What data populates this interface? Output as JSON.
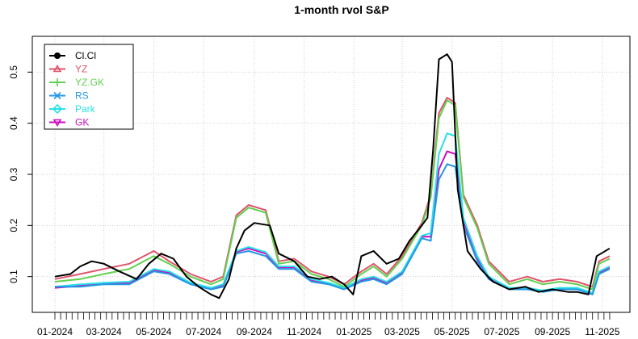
{
  "chart_data": {
    "type": "line",
    "title": "1-month rvol S&P",
    "xlabel": "",
    "ylabel": "",
    "ylim": [
      0.03,
      0.57
    ],
    "y_ticks": [
      0.1,
      0.2,
      0.3,
      0.4,
      0.5
    ],
    "x_ticks": [
      "01-2024",
      "03-2024",
      "05-2024",
      "07-2024",
      "09-2024",
      "11-2024",
      "01-2025",
      "03-2025",
      "05-2025",
      "07-2025",
      "09-2025",
      "11-2025"
    ],
    "x_start": "2024-01-01",
    "x_end": "2025-11-15",
    "grid": true,
    "legend_position": "top-left",
    "series": [
      {
        "name": "Cl.Cl",
        "color": "#000000",
        "marker": "circle",
        "values": [
          [
            "2024-01-01",
            0.1
          ],
          [
            "2024-01-20",
            0.105
          ],
          [
            "2024-02-01",
            0.12
          ],
          [
            "2024-02-15",
            0.13
          ],
          [
            "2024-03-01",
            0.125
          ],
          [
            "2024-03-20",
            0.11
          ],
          [
            "2024-04-10",
            0.095
          ],
          [
            "2024-04-25",
            0.125
          ],
          [
            "2024-05-10",
            0.145
          ],
          [
            "2024-05-25",
            0.135
          ],
          [
            "2024-06-10",
            0.1
          ],
          [
            "2024-06-25",
            0.08
          ],
          [
            "2024-07-10",
            0.065
          ],
          [
            "2024-07-20",
            0.058
          ],
          [
            "2024-08-01",
            0.095
          ],
          [
            "2024-08-10",
            0.155
          ],
          [
            "2024-08-20",
            0.19
          ],
          [
            "2024-09-01",
            0.205
          ],
          [
            "2024-09-20",
            0.2
          ],
          [
            "2024-10-01",
            0.145
          ],
          [
            "2024-10-20",
            0.13
          ],
          [
            "2024-11-05",
            0.1
          ],
          [
            "2024-11-20",
            0.095
          ],
          [
            "2024-12-05",
            0.1
          ],
          [
            "2024-12-20",
            0.085
          ],
          [
            "2024-12-31",
            0.065
          ],
          [
            "2025-01-10",
            0.14
          ],
          [
            "2025-01-25",
            0.15
          ],
          [
            "2025-02-10",
            0.125
          ],
          [
            "2025-02-25",
            0.135
          ],
          [
            "2025-03-10",
            0.17
          ],
          [
            "2025-03-25",
            0.2
          ],
          [
            "2025-04-01",
            0.215
          ],
          [
            "2025-04-08",
            0.35
          ],
          [
            "2025-04-15",
            0.525
          ],
          [
            "2025-04-25",
            0.535
          ],
          [
            "2025-05-01",
            0.52
          ],
          [
            "2025-05-08",
            0.27
          ],
          [
            "2025-05-20",
            0.15
          ],
          [
            "2025-06-05",
            0.115
          ],
          [
            "2025-06-20",
            0.09
          ],
          [
            "2025-07-10",
            0.075
          ],
          [
            "2025-07-30",
            0.08
          ],
          [
            "2025-08-15",
            0.07
          ],
          [
            "2025-09-01",
            0.075
          ],
          [
            "2025-09-20",
            0.07
          ],
          [
            "2025-10-01",
            0.07
          ],
          [
            "2025-10-15",
            0.065
          ],
          [
            "2025-10-25",
            0.14
          ],
          [
            "2025-11-10",
            0.155
          ]
        ]
      },
      {
        "name": "YZ",
        "color": "#DF536B",
        "marker": "triangle",
        "values": [
          [
            "2024-01-01",
            0.095
          ],
          [
            "2024-02-01",
            0.105
          ],
          [
            "2024-03-01",
            0.115
          ],
          [
            "2024-04-01",
            0.125
          ],
          [
            "2024-05-01",
            0.15
          ],
          [
            "2024-05-20",
            0.13
          ],
          [
            "2024-06-15",
            0.105
          ],
          [
            "2024-07-10",
            0.09
          ],
          [
            "2024-07-25",
            0.1
          ],
          [
            "2024-08-10",
            0.22
          ],
          [
            "2024-08-25",
            0.24
          ],
          [
            "2024-09-15",
            0.23
          ],
          [
            "2024-10-01",
            0.13
          ],
          [
            "2024-10-20",
            0.135
          ],
          [
            "2024-11-10",
            0.11
          ],
          [
            "2024-12-01",
            0.1
          ],
          [
            "2024-12-20",
            0.085
          ],
          [
            "2025-01-10",
            0.11
          ],
          [
            "2025-01-25",
            0.125
          ],
          [
            "2025-02-10",
            0.105
          ],
          [
            "2025-03-01",
            0.14
          ],
          [
            "2025-03-25",
            0.205
          ],
          [
            "2025-04-05",
            0.26
          ],
          [
            "2025-04-15",
            0.42
          ],
          [
            "2025-04-25",
            0.45
          ],
          [
            "2025-05-05",
            0.44
          ],
          [
            "2025-05-15",
            0.26
          ],
          [
            "2025-06-01",
            0.2
          ],
          [
            "2025-06-15",
            0.13
          ],
          [
            "2025-07-10",
            0.09
          ],
          [
            "2025-08-01",
            0.1
          ],
          [
            "2025-08-20",
            0.09
          ],
          [
            "2025-09-10",
            0.095
          ],
          [
            "2025-10-01",
            0.09
          ],
          [
            "2025-10-20",
            0.08
          ],
          [
            "2025-10-28",
            0.13
          ],
          [
            "2025-11-10",
            0.14
          ]
        ]
      },
      {
        "name": "YZ.GK",
        "color": "#61D04F",
        "marker": "plus",
        "values": [
          [
            "2024-01-01",
            0.09
          ],
          [
            "2024-02-01",
            0.095
          ],
          [
            "2024-03-01",
            0.105
          ],
          [
            "2024-04-01",
            0.115
          ],
          [
            "2024-05-01",
            0.14
          ],
          [
            "2024-05-20",
            0.125
          ],
          [
            "2024-06-15",
            0.1
          ],
          [
            "2024-07-10",
            0.085
          ],
          [
            "2024-07-25",
            0.095
          ],
          [
            "2024-08-10",
            0.215
          ],
          [
            "2024-08-25",
            0.235
          ],
          [
            "2024-09-15",
            0.225
          ],
          [
            "2024-10-01",
            0.125
          ],
          [
            "2024-10-20",
            0.13
          ],
          [
            "2024-11-10",
            0.105
          ],
          [
            "2024-12-01",
            0.095
          ],
          [
            "2024-12-20",
            0.08
          ],
          [
            "2025-01-10",
            0.105
          ],
          [
            "2025-01-25",
            0.12
          ],
          [
            "2025-02-10",
            0.1
          ],
          [
            "2025-03-01",
            0.135
          ],
          [
            "2025-03-25",
            0.2
          ],
          [
            "2025-04-05",
            0.255
          ],
          [
            "2025-04-15",
            0.41
          ],
          [
            "2025-04-25",
            0.445
          ],
          [
            "2025-05-05",
            0.435
          ],
          [
            "2025-05-15",
            0.255
          ],
          [
            "2025-06-01",
            0.195
          ],
          [
            "2025-06-15",
            0.125
          ],
          [
            "2025-07-10",
            0.085
          ],
          [
            "2025-08-01",
            0.095
          ],
          [
            "2025-08-20",
            0.085
          ],
          [
            "2025-09-10",
            0.09
          ],
          [
            "2025-10-01",
            0.085
          ],
          [
            "2025-10-20",
            0.075
          ],
          [
            "2025-10-28",
            0.125
          ],
          [
            "2025-11-10",
            0.135
          ]
        ]
      },
      {
        "name": "RS",
        "color": "#2297E6",
        "marker": "cross",
        "values": [
          [
            "2024-01-01",
            0.08
          ],
          [
            "2024-02-01",
            0.08
          ],
          [
            "2024-03-01",
            0.085
          ],
          [
            "2024-04-01",
            0.085
          ],
          [
            "2024-05-01",
            0.11
          ],
          [
            "2024-05-20",
            0.105
          ],
          [
            "2024-06-15",
            0.085
          ],
          [
            "2024-07-10",
            0.075
          ],
          [
            "2024-07-25",
            0.08
          ],
          [
            "2024-08-10",
            0.145
          ],
          [
            "2024-08-25",
            0.15
          ],
          [
            "2024-09-15",
            0.14
          ],
          [
            "2024-10-01",
            0.115
          ],
          [
            "2024-10-20",
            0.115
          ],
          [
            "2024-11-10",
            0.09
          ],
          [
            "2024-12-01",
            0.085
          ],
          [
            "2024-12-20",
            0.075
          ],
          [
            "2025-01-10",
            0.09
          ],
          [
            "2025-01-25",
            0.095
          ],
          [
            "2025-02-10",
            0.085
          ],
          [
            "2025-03-01",
            0.105
          ],
          [
            "2025-03-25",
            0.175
          ],
          [
            "2025-04-05",
            0.17
          ],
          [
            "2025-04-15",
            0.29
          ],
          [
            "2025-04-25",
            0.32
          ],
          [
            "2025-05-05",
            0.315
          ],
          [
            "2025-05-15",
            0.2
          ],
          [
            "2025-06-01",
            0.13
          ],
          [
            "2025-06-15",
            0.095
          ],
          [
            "2025-07-10",
            0.075
          ],
          [
            "2025-08-01",
            0.075
          ],
          [
            "2025-08-20",
            0.07
          ],
          [
            "2025-09-10",
            0.075
          ],
          [
            "2025-10-01",
            0.075
          ],
          [
            "2025-10-20",
            0.065
          ],
          [
            "2025-10-28",
            0.105
          ],
          [
            "2025-11-10",
            0.115
          ]
        ]
      },
      {
        "name": "Park",
        "color": "#28E2E5",
        "marker": "diamond",
        "values": [
          [
            "2024-01-01",
            0.08
          ],
          [
            "2024-02-01",
            0.085
          ],
          [
            "2024-03-01",
            0.088
          ],
          [
            "2024-04-01",
            0.09
          ],
          [
            "2024-05-01",
            0.115
          ],
          [
            "2024-05-20",
            0.11
          ],
          [
            "2024-06-15",
            0.088
          ],
          [
            "2024-07-10",
            0.078
          ],
          [
            "2024-07-25",
            0.085
          ],
          [
            "2024-08-10",
            0.15
          ],
          [
            "2024-08-25",
            0.158
          ],
          [
            "2024-09-15",
            0.148
          ],
          [
            "2024-10-01",
            0.12
          ],
          [
            "2024-10-20",
            0.12
          ],
          [
            "2024-11-10",
            0.095
          ],
          [
            "2024-12-01",
            0.088
          ],
          [
            "2024-12-20",
            0.078
          ],
          [
            "2025-01-10",
            0.095
          ],
          [
            "2025-01-25",
            0.1
          ],
          [
            "2025-02-10",
            0.09
          ],
          [
            "2025-03-01",
            0.11
          ],
          [
            "2025-03-25",
            0.18
          ],
          [
            "2025-04-05",
            0.185
          ],
          [
            "2025-04-15",
            0.34
          ],
          [
            "2025-04-25",
            0.38
          ],
          [
            "2025-05-05",
            0.375
          ],
          [
            "2025-05-15",
            0.215
          ],
          [
            "2025-06-01",
            0.14
          ],
          [
            "2025-06-15",
            0.1
          ],
          [
            "2025-07-10",
            0.078
          ],
          [
            "2025-08-01",
            0.078
          ],
          [
            "2025-08-20",
            0.073
          ],
          [
            "2025-09-10",
            0.078
          ],
          [
            "2025-10-01",
            0.078
          ],
          [
            "2025-10-20",
            0.068
          ],
          [
            "2025-10-28",
            0.11
          ],
          [
            "2025-11-10",
            0.12
          ]
        ]
      },
      {
        "name": "GK",
        "color": "#CD0BBC",
        "marker": "triangle-down",
        "values": [
          [
            "2024-01-01",
            0.078
          ],
          [
            "2024-02-01",
            0.082
          ],
          [
            "2024-03-01",
            0.086
          ],
          [
            "2024-04-01",
            0.088
          ],
          [
            "2024-05-01",
            0.112
          ],
          [
            "2024-05-20",
            0.108
          ],
          [
            "2024-06-15",
            0.087
          ],
          [
            "2024-07-10",
            0.076
          ],
          [
            "2024-07-25",
            0.083
          ],
          [
            "2024-08-10",
            0.148
          ],
          [
            "2024-08-25",
            0.155
          ],
          [
            "2024-09-15",
            0.145
          ],
          [
            "2024-10-01",
            0.118
          ],
          [
            "2024-10-20",
            0.118
          ],
          [
            "2024-11-10",
            0.093
          ],
          [
            "2024-12-01",
            0.087
          ],
          [
            "2024-12-20",
            0.077
          ],
          [
            "2025-01-10",
            0.093
          ],
          [
            "2025-01-25",
            0.098
          ],
          [
            "2025-02-10",
            0.088
          ],
          [
            "2025-03-01",
            0.108
          ],
          [
            "2025-03-25",
            0.178
          ],
          [
            "2025-04-05",
            0.178
          ],
          [
            "2025-04-15",
            0.31
          ],
          [
            "2025-04-25",
            0.345
          ],
          [
            "2025-05-05",
            0.34
          ],
          [
            "2025-05-15",
            0.21
          ],
          [
            "2025-06-01",
            0.135
          ],
          [
            "2025-06-15",
            0.098
          ],
          [
            "2025-07-10",
            0.077
          ],
          [
            "2025-08-01",
            0.077
          ],
          [
            "2025-08-20",
            0.072
          ],
          [
            "2025-09-10",
            0.077
          ],
          [
            "2025-10-01",
            0.077
          ],
          [
            "2025-10-20",
            0.067
          ],
          [
            "2025-10-28",
            0.108
          ],
          [
            "2025-11-10",
            0.118
          ]
        ]
      }
    ]
  }
}
